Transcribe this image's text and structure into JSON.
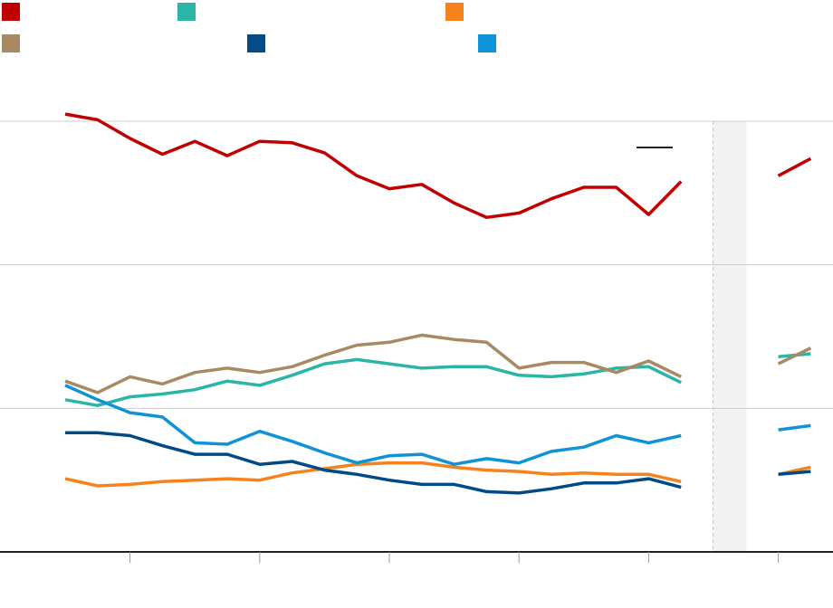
{
  "chart_data": {
    "type": "line",
    "title": "",
    "xlabel": "",
    "ylabel": "",
    "ylim": [
      0,
      3
    ],
    "grid": true,
    "legend_placement": "top-left",
    "x": [
      1,
      2,
      3,
      4,
      5,
      6,
      7,
      8,
      9,
      10,
      11,
      12,
      13,
      14,
      15,
      16,
      17,
      18,
      19,
      20,
      21,
      22,
      23,
      24
    ],
    "x_ticks": [
      3,
      7,
      11,
      15,
      19,
      23
    ],
    "gap_x": [
      21,
      23
    ],
    "series": [
      {
        "key": "red",
        "name": "",
        "color": "#c00000",
        "values": [
          3.05,
          3.01,
          2.88,
          2.77,
          2.86,
          2.76,
          2.86,
          2.85,
          2.78,
          2.62,
          2.53,
          2.56,
          2.43,
          2.33,
          2.36,
          2.46,
          2.54,
          2.54,
          2.35,
          2.58,
          null,
          null,
          2.62,
          2.74
        ]
      },
      {
        "key": "teal",
        "name": "",
        "color": "#2bb5a7",
        "values": [
          1.06,
          1.02,
          1.08,
          1.1,
          1.13,
          1.19,
          1.16,
          1.23,
          1.31,
          1.34,
          1.31,
          1.28,
          1.29,
          1.29,
          1.23,
          1.22,
          1.24,
          1.28,
          1.29,
          1.18,
          null,
          null,
          1.36,
          1.38
        ]
      },
      {
        "key": "orange",
        "name": "",
        "color": "#f7821b",
        "values": [
          0.51,
          0.46,
          0.47,
          0.49,
          0.5,
          0.51,
          0.5,
          0.55,
          0.58,
          0.61,
          0.62,
          0.62,
          0.59,
          0.57,
          0.56,
          0.54,
          0.55,
          0.54,
          0.54,
          0.49,
          null,
          null,
          0.54,
          0.59
        ]
      },
      {
        "key": "tan",
        "name": "",
        "color": "#a78a64",
        "values": [
          1.19,
          1.11,
          1.22,
          1.17,
          1.25,
          1.28,
          1.25,
          1.29,
          1.37,
          1.44,
          1.46,
          1.51,
          1.48,
          1.46,
          1.28,
          1.32,
          1.32,
          1.25,
          1.33,
          1.22,
          null,
          null,
          1.31,
          1.42
        ]
      },
      {
        "key": "navy",
        "name": "",
        "color": "#004b87",
        "values": [
          0.83,
          0.83,
          0.81,
          0.74,
          0.68,
          0.68,
          0.61,
          0.63,
          0.57,
          0.54,
          0.5,
          0.47,
          0.47,
          0.42,
          0.41,
          0.44,
          0.48,
          0.48,
          0.51,
          0.45,
          null,
          null,
          0.54,
          0.56
        ]
      },
      {
        "key": "blue",
        "name": "",
        "color": "#0f93d6",
        "values": [
          1.16,
          1.06,
          0.97,
          0.94,
          0.76,
          0.75,
          0.84,
          0.77,
          0.69,
          0.62,
          0.67,
          0.68,
          0.61,
          0.65,
          0.62,
          0.7,
          0.73,
          0.81,
          0.76,
          0.81,
          null,
          null,
          0.85,
          0.88
        ]
      }
    ]
  }
}
